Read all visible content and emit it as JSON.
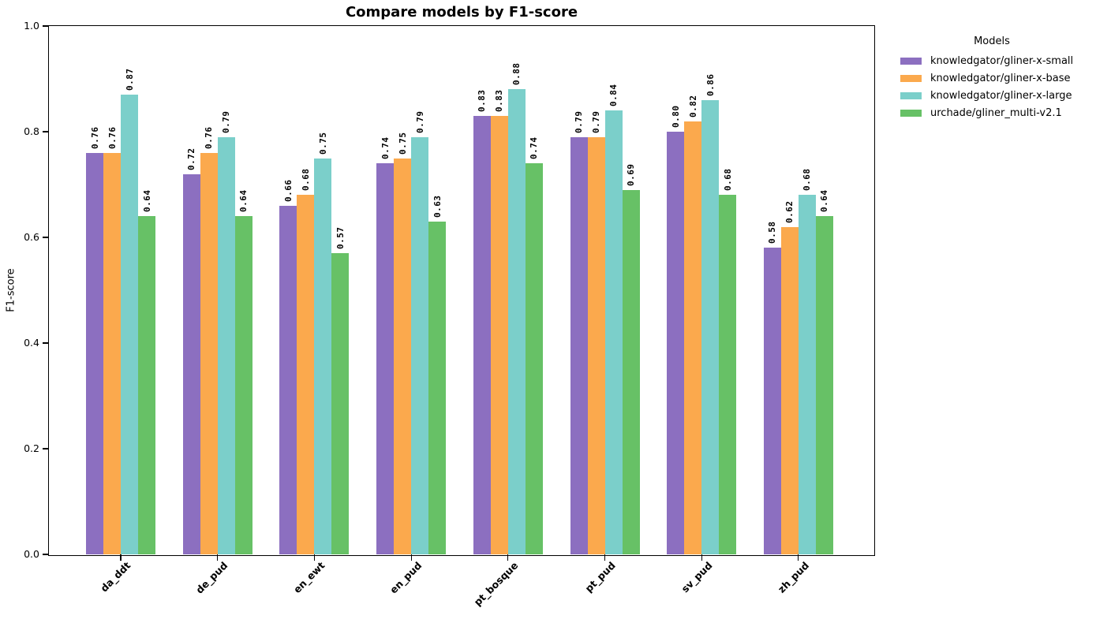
{
  "chart_data": {
    "type": "bar",
    "title": "Compare models by F1-score",
    "xlabel": "",
    "ylabel": "F1-score",
    "ylim": [
      0.0,
      1.0
    ],
    "yticks": [
      "0.0",
      "0.2",
      "0.4",
      "0.6",
      "0.8",
      "1.0"
    ],
    "grid": false,
    "value_labels": "rotated-90-above-bars",
    "legend_title": "Models",
    "legend_position": "outside-upper-right",
    "categories": [
      "da_ddt",
      "de_pud",
      "en_ewt",
      "en_pud",
      "pt_bosque",
      "pt_pud",
      "sv_pud",
      "zh_pud"
    ],
    "series": [
      {
        "name": "knowledgator/gliner-x-small",
        "color": "#8c6fc0",
        "values": [
          0.76,
          0.72,
          0.66,
          0.74,
          0.83,
          0.79,
          0.8,
          0.58
        ]
      },
      {
        "name": "knowledgator/gliner-x-base",
        "color": "#fba94d",
        "values": [
          0.76,
          0.76,
          0.68,
          0.75,
          0.83,
          0.79,
          0.82,
          0.62
        ]
      },
      {
        "name": "knowledgator/gliner-x-large",
        "color": "#7bcfca",
        "values": [
          0.87,
          0.79,
          0.75,
          0.79,
          0.88,
          0.84,
          0.86,
          0.68
        ]
      },
      {
        "name": "urchade/gliner_multi-v2.1",
        "color": "#67c166",
        "values": [
          0.64,
          0.64,
          0.57,
          0.63,
          0.74,
          0.69,
          0.68,
          0.64
        ]
      }
    ]
  }
}
